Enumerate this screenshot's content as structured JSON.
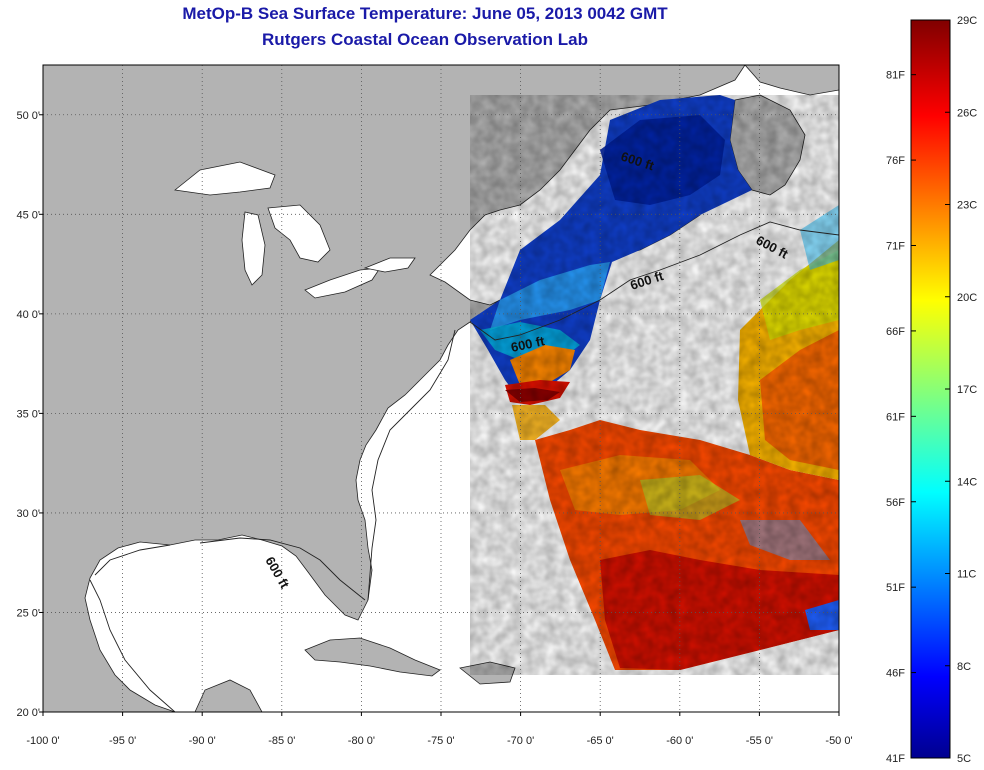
{
  "header": {
    "title": "MetOp-B Sea Surface Temperature:  June 05, 2013 0042 GMT",
    "subtitle": "Rutgers Coastal Ocean Observation Lab"
  },
  "map": {
    "lon_range": [
      -100,
      -50
    ],
    "lat_range": [
      20,
      52.5
    ],
    "lon_ticks": [
      {
        "value": -100,
        "label": "-100 0'"
      },
      {
        "value": -95,
        "label": "-95 0'"
      },
      {
        "value": -90,
        "label": "-90 0'"
      },
      {
        "value": -85,
        "label": "-85 0'"
      },
      {
        "value": -80,
        "label": "-80 0'"
      },
      {
        "value": -75,
        "label": "-75 0'"
      },
      {
        "value": -70,
        "label": "-70 0'"
      },
      {
        "value": -65,
        "label": "-65 0'"
      },
      {
        "value": -60,
        "label": "-60 0'"
      },
      {
        "value": -55,
        "label": "-55 0'"
      },
      {
        "value": -50,
        "label": "-50 0'"
      }
    ],
    "lat_ticks": [
      {
        "value": 20,
        "label": "20 0'"
      },
      {
        "value": 25,
        "label": "25 0'"
      },
      {
        "value": 30,
        "label": "30 0'"
      },
      {
        "value": 35,
        "label": "35 0'"
      },
      {
        "value": 40,
        "label": "40 0'"
      },
      {
        "value": 45,
        "label": "45 0'"
      },
      {
        "value": 50,
        "label": "50 0'"
      }
    ],
    "contour_label": "600 ft",
    "colors": {
      "land": "#b3b3b3",
      "water": "#ffffff",
      "grid": "#555555"
    }
  },
  "colorbar": {
    "range_c": [
      5,
      29
    ],
    "celsius_labels": [
      {
        "value": 29,
        "label": "29C"
      },
      {
        "value": 26,
        "label": "26C"
      },
      {
        "value": 23,
        "label": "23C"
      },
      {
        "value": 20,
        "label": "20C"
      },
      {
        "value": 17,
        "label": "17C"
      },
      {
        "value": 14,
        "label": "14C"
      },
      {
        "value": 11,
        "label": "11C"
      },
      {
        "value": 8,
        "label": "8C"
      },
      {
        "value": 5,
        "label": "5C"
      }
    ],
    "fahrenheit_labels": [
      {
        "value": 81,
        "label": "81F"
      },
      {
        "value": 76,
        "label": "76F"
      },
      {
        "value": 71,
        "label": "71F"
      },
      {
        "value": 66,
        "label": "66F"
      },
      {
        "value": 61,
        "label": "61F"
      },
      {
        "value": 56,
        "label": "56F"
      },
      {
        "value": 51,
        "label": "51F"
      },
      {
        "value": 46,
        "label": "46F"
      },
      {
        "value": 41,
        "label": "41F"
      }
    ]
  }
}
